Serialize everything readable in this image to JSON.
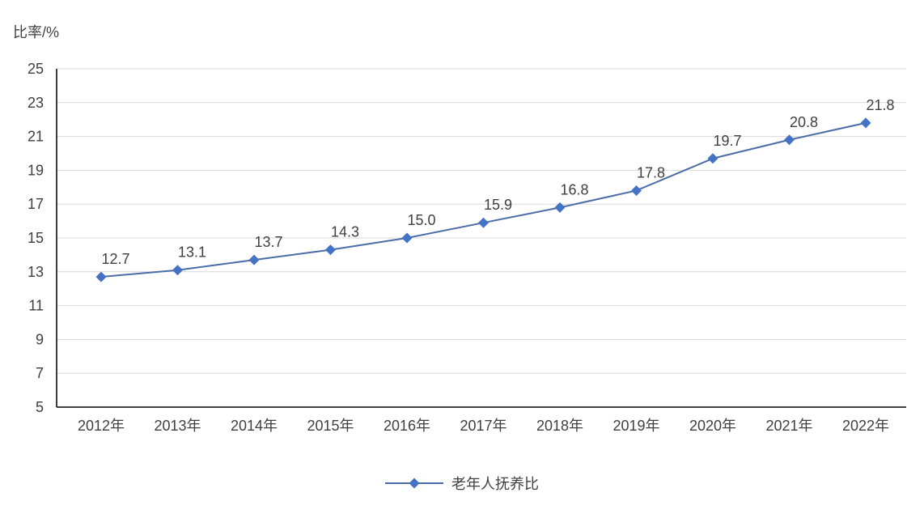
{
  "chart_data": {
    "type": "line",
    "title": "",
    "ylabel": "比率/%",
    "xlabel": "",
    "categories": [
      "2012年",
      "2013年",
      "2014年",
      "2015年",
      "2016年",
      "2017年",
      "2018年",
      "2019年",
      "2020年",
      "2021年",
      "2022年"
    ],
    "series": [
      {
        "name": "老年人抚养比",
        "values": [
          12.7,
          13.1,
          13.7,
          14.3,
          15.0,
          15.9,
          16.8,
          17.8,
          19.7,
          20.8,
          21.8
        ],
        "labels": [
          "12.7",
          "13.1",
          "13.7",
          "14.3",
          "15.0",
          "15.9",
          "16.8",
          "17.8",
          "19.7",
          "20.8",
          "21.8"
        ],
        "marker": "diamond",
        "color": "#4472c4",
        "line_color": "#4a6da7"
      }
    ],
    "ylim": [
      5,
      25
    ],
    "yticks": [
      5,
      7,
      9,
      11,
      13,
      15,
      17,
      19,
      21,
      23,
      25
    ],
    "grid": true,
    "legend_position": "bottom",
    "colors": {
      "gridline": "#d9d9d9",
      "axis": "#262626",
      "tick_text": "#3f3f3f",
      "label_text": "#3f3f3f",
      "background": "#ffffff"
    }
  }
}
